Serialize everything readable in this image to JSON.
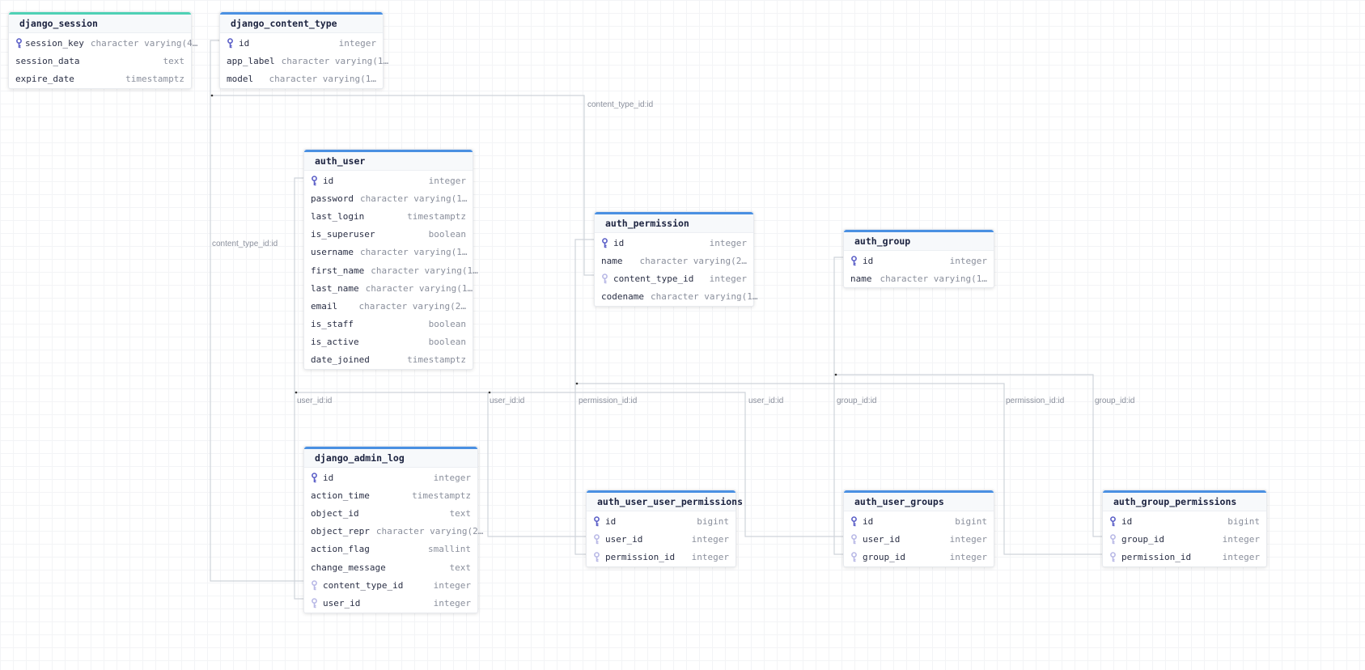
{
  "colors": {
    "accent": "#4a90e2",
    "session_accent": "#4fd1b5",
    "pk_icon": "#5b5fc7",
    "fk_icon": "#b9b9e6",
    "edge": "#cfd4da"
  },
  "tables": [
    {
      "name": "django_session",
      "columns": [
        {
          "name": "session_key",
          "type": "character varying(4…",
          "key": "pk"
        },
        {
          "name": "session_data",
          "type": "text",
          "key": ""
        },
        {
          "name": "expire_date",
          "type": "timestamptz",
          "key": ""
        }
      ]
    },
    {
      "name": "django_content_type",
      "columns": [
        {
          "name": "id",
          "type": "integer",
          "key": "pk"
        },
        {
          "name": "app_label",
          "type": "character varying(1…",
          "key": ""
        },
        {
          "name": "model",
          "type": "character varying(1…",
          "key": ""
        }
      ]
    },
    {
      "name": "auth_user",
      "columns": [
        {
          "name": "id",
          "type": "integer",
          "key": "pk"
        },
        {
          "name": "password",
          "type": "character varying(1…",
          "key": ""
        },
        {
          "name": "last_login",
          "type": "timestamptz",
          "key": ""
        },
        {
          "name": "is_superuser",
          "type": "boolean",
          "key": ""
        },
        {
          "name": "username",
          "type": "character varying(1…",
          "key": ""
        },
        {
          "name": "first_name",
          "type": "character varying(1…",
          "key": ""
        },
        {
          "name": "last_name",
          "type": "character varying(1…",
          "key": ""
        },
        {
          "name": "email",
          "type": "character varying(2…",
          "key": ""
        },
        {
          "name": "is_staff",
          "type": "boolean",
          "key": ""
        },
        {
          "name": "is_active",
          "type": "boolean",
          "key": ""
        },
        {
          "name": "date_joined",
          "type": "timestamptz",
          "key": ""
        }
      ]
    },
    {
      "name": "auth_permission",
      "columns": [
        {
          "name": "id",
          "type": "integer",
          "key": "pk"
        },
        {
          "name": "name",
          "type": "character varying(2…",
          "key": ""
        },
        {
          "name": "content_type_id",
          "type": "integer",
          "key": "fk"
        },
        {
          "name": "codename",
          "type": "character varying(1…",
          "key": ""
        }
      ]
    },
    {
      "name": "auth_group",
      "columns": [
        {
          "name": "id",
          "type": "integer",
          "key": "pk"
        },
        {
          "name": "name",
          "type": "character varying(1…",
          "key": ""
        }
      ]
    },
    {
      "name": "django_admin_log",
      "columns": [
        {
          "name": "id",
          "type": "integer",
          "key": "pk"
        },
        {
          "name": "action_time",
          "type": "timestamptz",
          "key": ""
        },
        {
          "name": "object_id",
          "type": "text",
          "key": ""
        },
        {
          "name": "object_repr",
          "type": "character varying(2…",
          "key": ""
        },
        {
          "name": "action_flag",
          "type": "smallint",
          "key": ""
        },
        {
          "name": "change_message",
          "type": "text",
          "key": ""
        },
        {
          "name": "content_type_id",
          "type": "integer",
          "key": "fk"
        },
        {
          "name": "user_id",
          "type": "integer",
          "key": "fk"
        }
      ]
    },
    {
      "name": "auth_user_user_permissions",
      "columns": [
        {
          "name": "id",
          "type": "bigint",
          "key": "pk"
        },
        {
          "name": "user_id",
          "type": "integer",
          "key": "fk"
        },
        {
          "name": "permission_id",
          "type": "integer",
          "key": "fk"
        }
      ]
    },
    {
      "name": "auth_user_groups",
      "columns": [
        {
          "name": "id",
          "type": "bigint",
          "key": "pk"
        },
        {
          "name": "user_id",
          "type": "integer",
          "key": "fk"
        },
        {
          "name": "group_id",
          "type": "integer",
          "key": "fk"
        }
      ]
    },
    {
      "name": "auth_group_permissions",
      "columns": [
        {
          "name": "id",
          "type": "bigint",
          "key": "pk"
        },
        {
          "name": "group_id",
          "type": "integer",
          "key": "fk"
        },
        {
          "name": "permission_id",
          "type": "integer",
          "key": "fk"
        }
      ]
    }
  ],
  "relations": [
    {
      "label": "content_type_id:id",
      "from": "django_admin_log.content_type_id",
      "to": "django_content_type.id"
    },
    {
      "label": "content_type_id:id",
      "from": "auth_permission.content_type_id",
      "to": "django_content_type.id"
    },
    {
      "label": "user_id:id",
      "from": "django_admin_log.user_id",
      "to": "auth_user.id"
    },
    {
      "label": "user_id:id",
      "from": "auth_user_user_permissions.user_id",
      "to": "auth_user.id"
    },
    {
      "label": "permission_id:id",
      "from": "auth_user_user_permissions.permission_id",
      "to": "auth_permission.id"
    },
    {
      "label": "user_id:id",
      "from": "auth_user_groups.user_id",
      "to": "auth_user.id"
    },
    {
      "label": "group_id:id",
      "from": "auth_user_groups.group_id",
      "to": "auth_group.id"
    },
    {
      "label": "permission_id:id",
      "from": "auth_group_permissions.permission_id",
      "to": "auth_permission.id"
    },
    {
      "label": "group_id:id",
      "from": "auth_group_permissions.group_id",
      "to": "auth_group.id"
    }
  ]
}
